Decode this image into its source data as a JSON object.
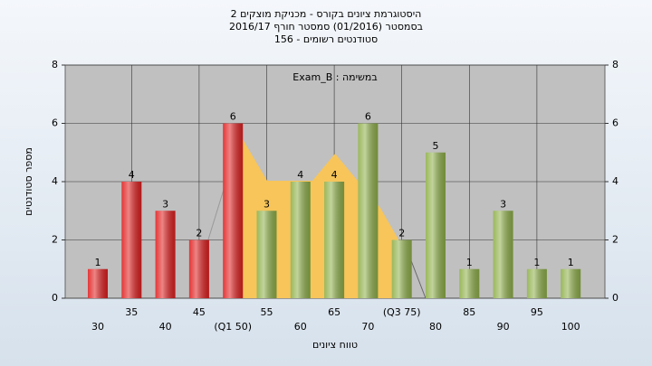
{
  "chart_data": {
    "type": "bar",
    "title": "היסטוגרמת ציונים בקורס - מכניקת מוצקים 2",
    "subtitle": "בסמסטר (01/2016) סמסטר חורף 2016/17",
    "subtitle2": "סטודנטים רשומים - 156",
    "annotation": "במשימה : Exam_B",
    "xlabel": "טווח ציונים",
    "ylabel": "מספר סטודנטים",
    "categories": [
      "30",
      "35",
      "40",
      "45",
      "(Q1 50)",
      "55",
      "60",
      "65",
      "70",
      "(Q3 75)",
      "80",
      "85",
      "90",
      "95",
      "100"
    ],
    "values": [
      1,
      4,
      3,
      2,
      6,
      3,
      4,
      4,
      6,
      2,
      5,
      1,
      3,
      1,
      1
    ],
    "colors": [
      "#e02020",
      "#e02020",
      "#e02020",
      "#e02020",
      "#e02020",
      "#8fb04a",
      "#8fb04a",
      "#8fb04a",
      "#8fb04a",
      "#8fb04a",
      "#8fb04a",
      "#8fb04a",
      "#8fb04a",
      "#8fb04a",
      "#8fb04a"
    ],
    "ylim": [
      0,
      8
    ],
    "yticks": [
      0,
      2,
      4,
      6,
      8
    ],
    "y2lim": [
      0,
      8
    ],
    "y2ticks": [
      0,
      2,
      4,
      6,
      8
    ],
    "grid": true
  }
}
